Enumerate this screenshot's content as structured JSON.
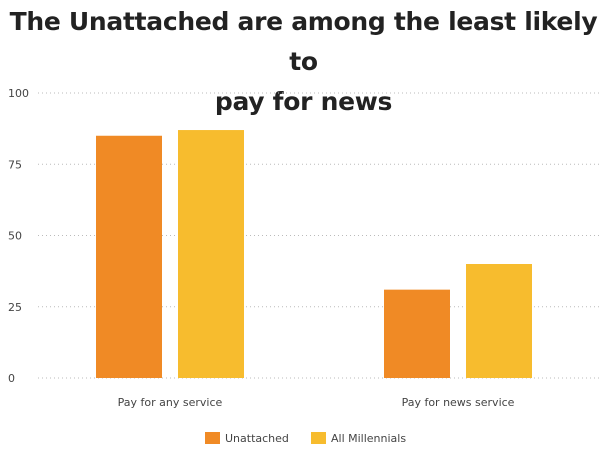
{
  "chart_data": {
    "type": "bar",
    "title": "The Unattached are among the least likely to pay for news",
    "title_lines": [
      "The Unattached are among the least likely to",
      "pay for news"
    ],
    "categories": [
      "Pay for any service",
      "Pay for news service"
    ],
    "series": [
      {
        "name": "Unattached",
        "values": [
          85,
          31
        ],
        "color": "#F08A25"
      },
      {
        "name": "All Millennials",
        "values": [
          87,
          40
        ],
        "color": "#F7BC2E"
      }
    ],
    "ylim": [
      0,
      100
    ],
    "yticks": [
      0,
      25,
      50,
      75,
      100
    ],
    "xlabel": "",
    "ylabel": "",
    "grid": true,
    "legend_position": "bottom-center"
  },
  "colors": {
    "grid": "#bbbbbb",
    "text": "#444444",
    "title": "#222222"
  }
}
